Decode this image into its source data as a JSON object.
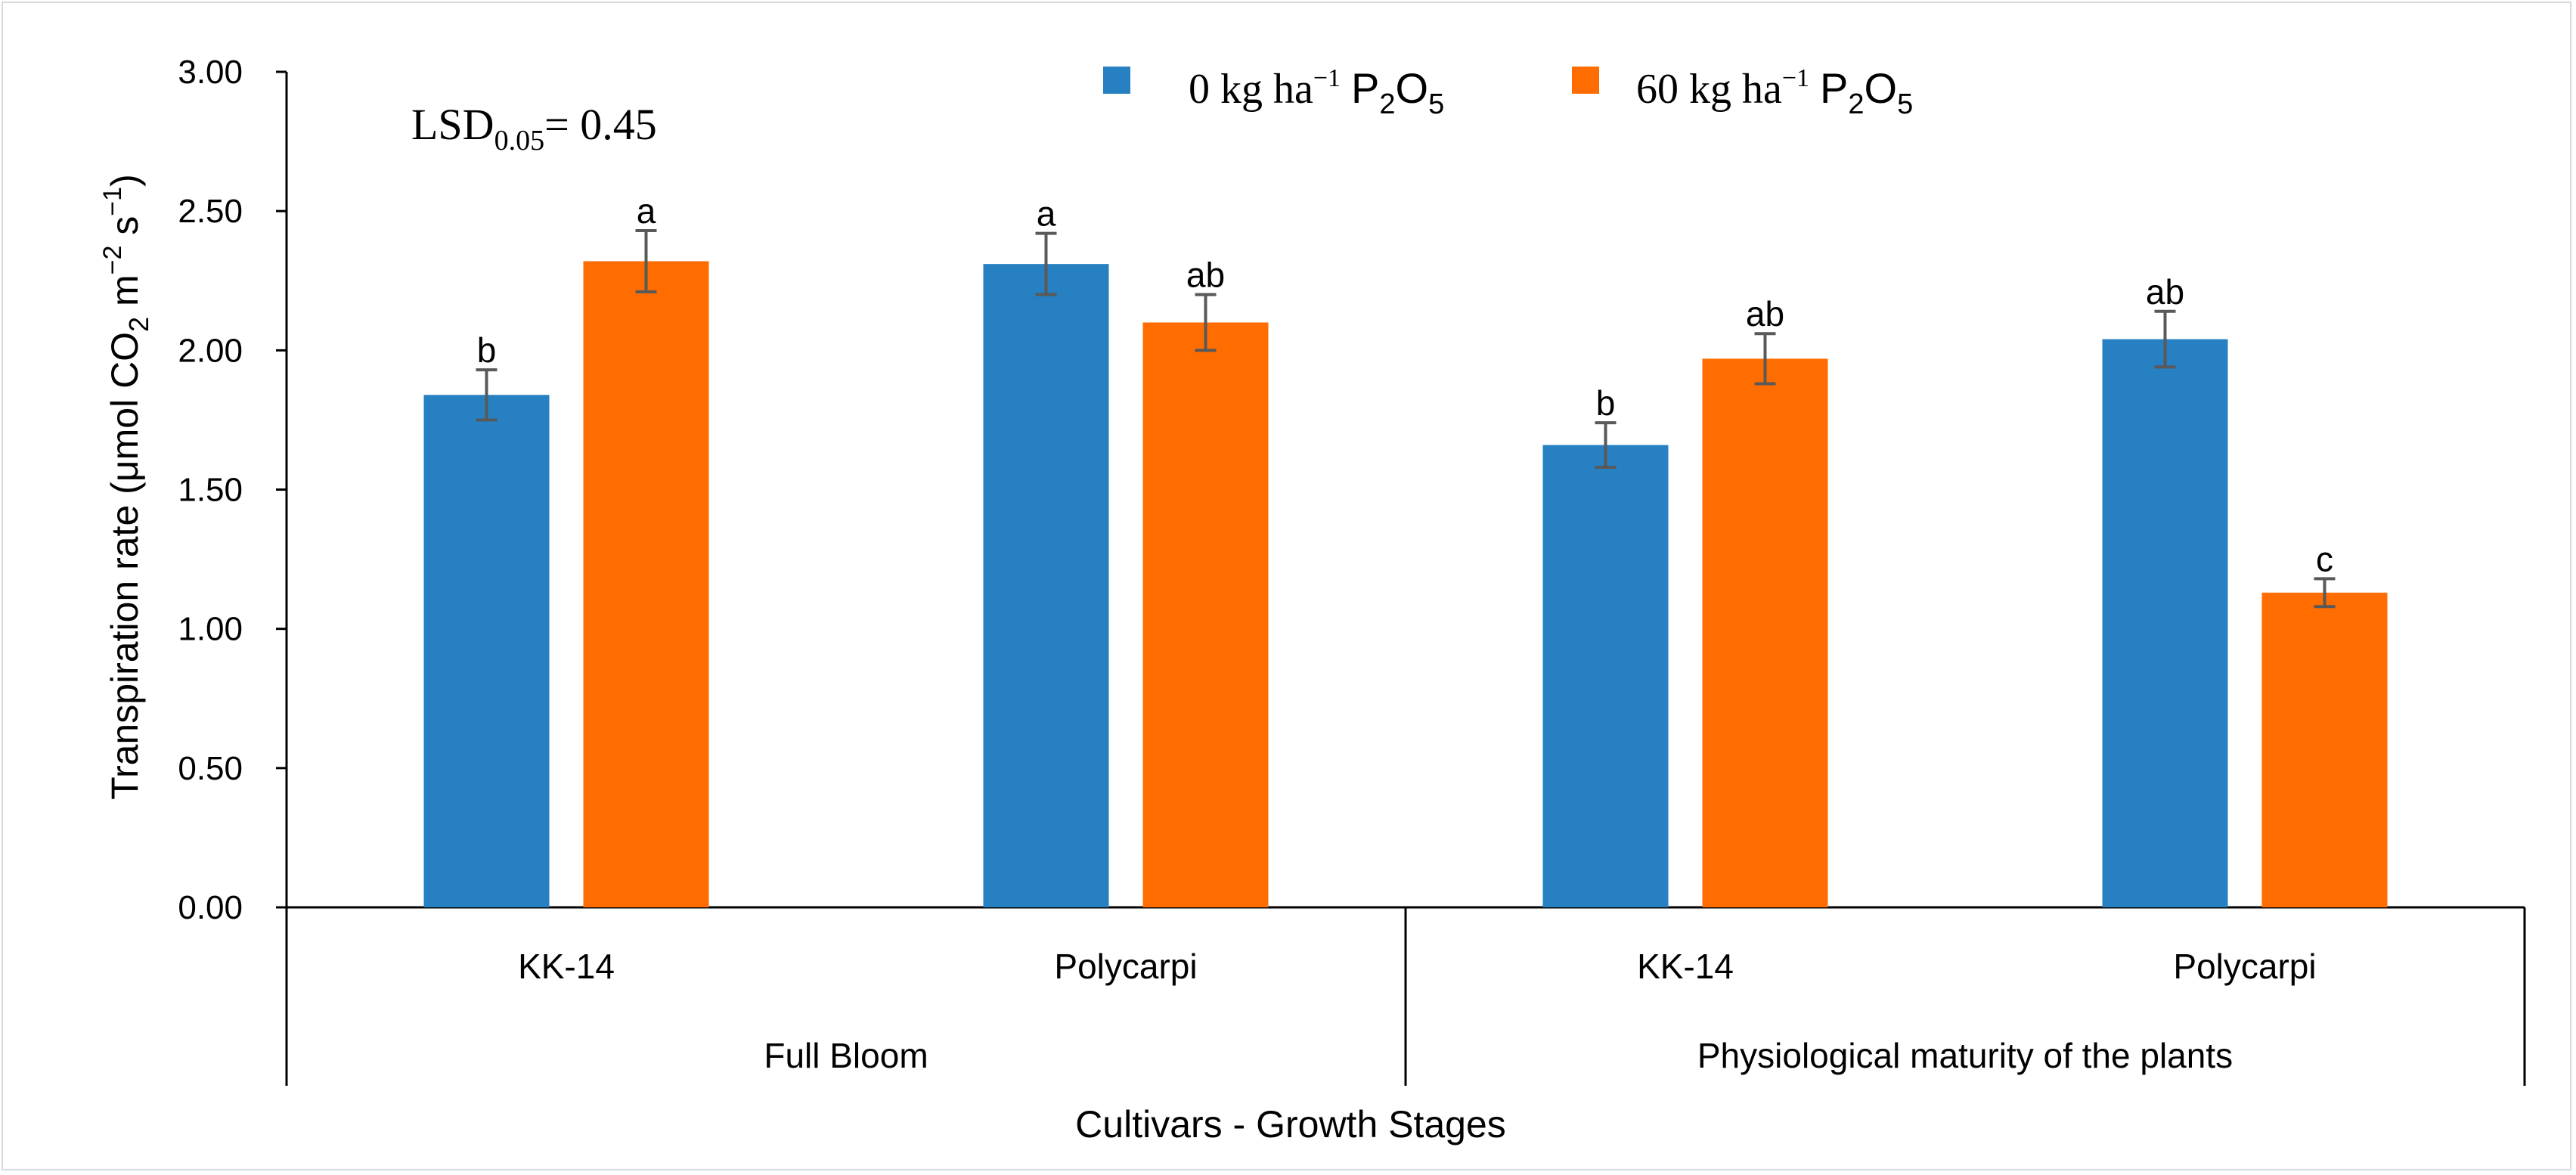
{
  "chart_data": {
    "type": "bar",
    "categories": [
      "KK-14",
      "Polycarpi",
      "KK-14",
      "Polycarpi"
    ],
    "groups": [
      {
        "label": "Full Bloom",
        "categories": [
          "KK-14",
          "Polycarpi"
        ]
      },
      {
        "label": "Physiological maturity of the plants",
        "categories": [
          "KK-14",
          "Polycarpi"
        ]
      }
    ],
    "series": [
      {
        "name": "0 kg ha⁻¹ P₂O₅",
        "legend_main": "0 kg ha",
        "legend_exp": "−1",
        "legend_chem": [
          "P",
          "2",
          "O",
          "5"
        ],
        "color": "#2680c1",
        "values": [
          1.84,
          2.31,
          1.66,
          2.04
        ],
        "errors": [
          0.09,
          0.11,
          0.08,
          0.1
        ],
        "letters": [
          "b",
          "a",
          "b",
          "ab"
        ]
      },
      {
        "name": "60 kg ha⁻¹ P₂O₅",
        "legend_main": "60 kg ha",
        "legend_exp": "−1",
        "legend_chem": [
          "P",
          "2",
          "O",
          "5"
        ],
        "color": "#ff6d00",
        "values": [
          2.32,
          2.1,
          1.97,
          1.13
        ],
        "errors": [
          0.11,
          0.1,
          0.09,
          0.05
        ],
        "letters": [
          "a",
          "ab",
          "ab",
          "c"
        ]
      }
    ],
    "ylim": [
      0,
      3
    ],
    "yticks": [
      "0.00",
      "0.50",
      "1.00",
      "1.50",
      "2.00",
      "2.50",
      "3.00"
    ],
    "ylabel": "Transpiration rate (μmol CO₂ m⁻² s⁻¹)",
    "ylabel_parts": {
      "pre": "Transpiration rate (μmol CO",
      "sub": "2",
      "mid1": " m",
      "sup1": "−2",
      "mid2": " s",
      "sup2": "−1",
      "post": ")"
    },
    "xlabel": "Cultivars - Growth Stages",
    "annotation": {
      "main": "LSD",
      "sub": "0.05",
      "rest": "= 0.45"
    },
    "grid": false,
    "legend": "top-center",
    "error_bar_color": "#595959"
  }
}
